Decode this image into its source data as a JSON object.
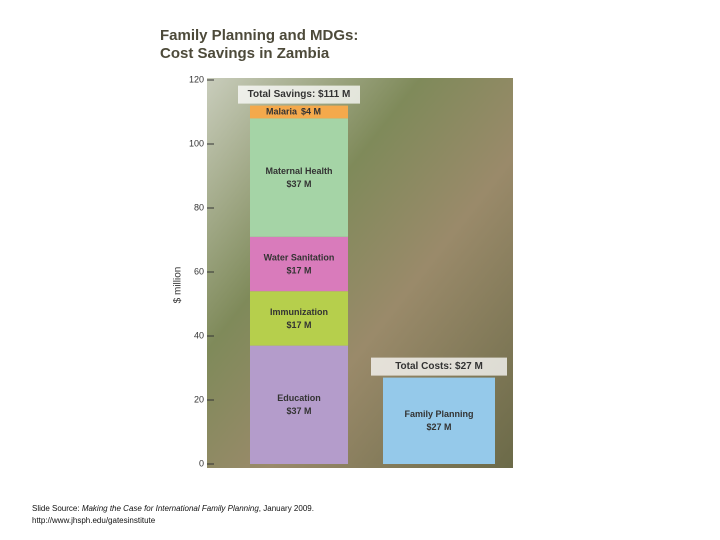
{
  "chart_data": {
    "type": "stacked-bar",
    "title_lines": [
      "Family Planning and MDGs:",
      "Cost Savings in Zambia"
    ],
    "y_label": "$ million",
    "categories": [
      "Total Savings: $111 M",
      "Total Costs: $27 M"
    ],
    "series": [
      {
        "name": "Education",
        "color": "#b49ccb",
        "values": [
          37,
          null
        ],
        "value_labels": [
          "$37 M",
          null
        ]
      },
      {
        "name": "Immunization",
        "color": "#b6cf4c",
        "values": [
          17,
          null
        ],
        "value_labels": [
          "$17 M",
          null
        ]
      },
      {
        "name": "Water Sanitation",
        "color": "#d97bbb",
        "values": [
          17,
          null
        ],
        "value_labels": [
          "$17 M",
          null
        ]
      },
      {
        "name": "Maternal Health",
        "color": "#a5d4a6",
        "values": [
          37,
          null
        ],
        "value_labels": [
          "$37 M",
          null
        ]
      },
      {
        "name": "Malaria",
        "color": "#f4a94c",
        "values": [
          4,
          null
        ],
        "value_labels": [
          "$4 M",
          null
        ]
      },
      {
        "name": "Family Planning",
        "color": "#95c9ea",
        "values": [
          null,
          27
        ],
        "value_labels": [
          null,
          "$27 M"
        ]
      }
    ],
    "ylim": [
      0,
      120
    ],
    "yticks": [
      0,
      20,
      40,
      60,
      80,
      100,
      120
    ]
  },
  "footer": {
    "prefix": "Slide Source: ",
    "title": "Making the Case for International Family Planning",
    "suffix": ", January 2009.",
    "url": "http://www.jhsph.edu/gatesinstitute"
  }
}
